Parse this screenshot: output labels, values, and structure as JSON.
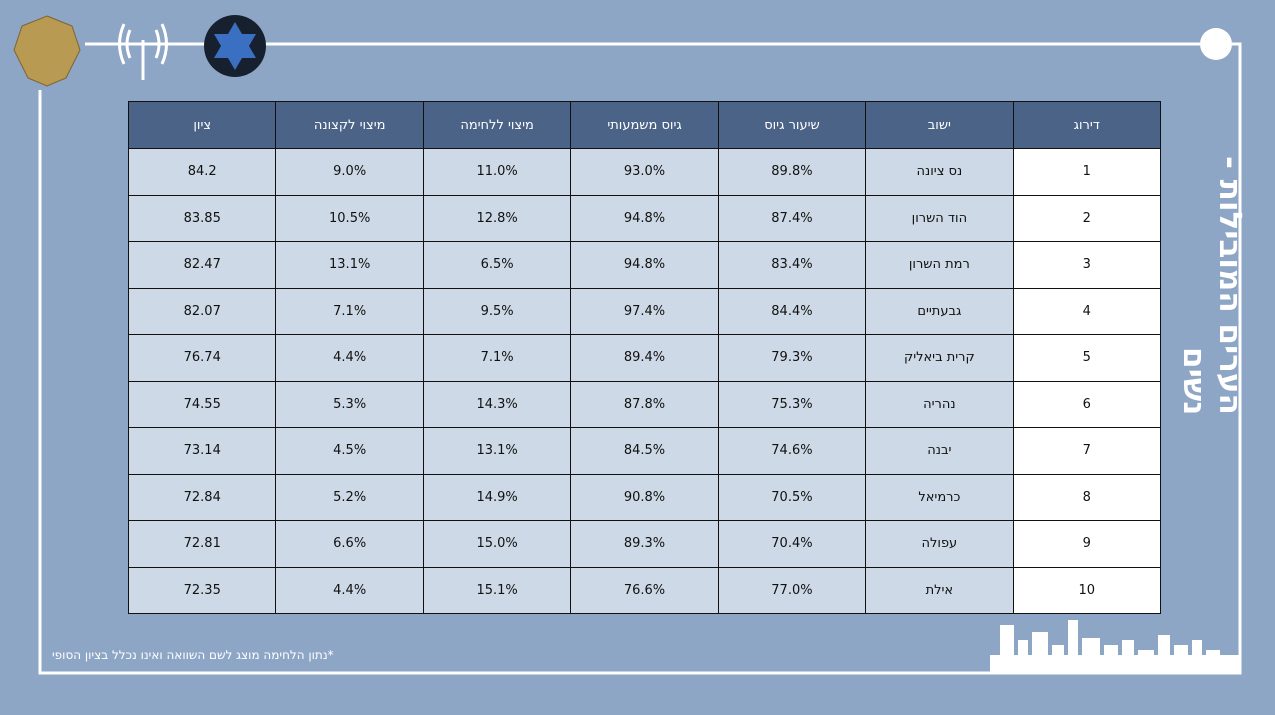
{
  "title": "הערים המובילות - נשים",
  "footnote": "*נתון הלחימה מוצג לשם השוואה ואינו נכלל בציון הסופי",
  "table": {
    "columns": [
      "דירוג",
      "ישוב",
      "שיעור גיוס",
      "גיוס משמעותי",
      "מיצוי ללחימה",
      "מיצוי לקצונה",
      "ציון"
    ],
    "rows": [
      [
        "1",
        "נס ציונה",
        "89.8%",
        "93.0%",
        "11.0%",
        "9.0%",
        "84.2"
      ],
      [
        "2",
        "הוד השרון",
        "87.4%",
        "94.8%",
        "12.8%",
        "10.5%",
        "83.85"
      ],
      [
        "3",
        "רמת השרון",
        "83.4%",
        "94.8%",
        "6.5%",
        "13.1%",
        "82.47"
      ],
      [
        "4",
        "גבעתיים",
        "84.4%",
        "97.4%",
        "9.5%",
        "7.1%",
        "82.07"
      ],
      [
        "5",
        "קרית ביאליק",
        "79.3%",
        "89.4%",
        "7.1%",
        "4.4%",
        "76.74"
      ],
      [
        "6",
        "נהריה",
        "75.3%",
        "87.8%",
        "14.3%",
        "5.3%",
        "74.55"
      ],
      [
        "7",
        "יבנה",
        "74.6%",
        "84.5%",
        "13.1%",
        "4.5%",
        "73.14"
      ],
      [
        "8",
        "כרמיאל",
        "70.5%",
        "90.8%",
        "14.9%",
        "5.2%",
        "72.84"
      ],
      [
        "9",
        "עפולה",
        "70.4%",
        "89.3%",
        "15.0%",
        "6.6%",
        "72.81"
      ],
      [
        "10",
        "אילת",
        "77.0%",
        "76.6%",
        "15.1%",
        "4.4%",
        "72.35"
      ]
    ]
  }
}
